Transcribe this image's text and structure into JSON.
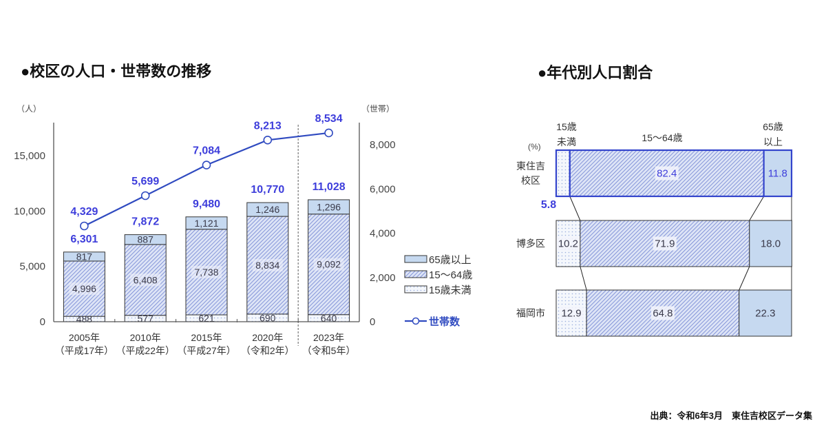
{
  "left_chart": {
    "title": "●校区の人口・世帯数の推移",
    "y_left_unit": "（人）",
    "y_right_unit": "（世帯）",
    "y_left_ticks": [
      "15,000",
      "10,000",
      "5,000",
      "0"
    ],
    "y_right_ticks": [
      "8,000",
      "6,000",
      "4,000",
      "2,000",
      "0"
    ],
    "categories": [
      {
        "year": "2005年",
        "era": "（平成17年）"
      },
      {
        "year": "2010年",
        "era": "（平成22年）"
      },
      {
        "year": "2015年",
        "era": "（平成27年）"
      },
      {
        "year": "2020年",
        "era": "（令和2年）"
      },
      {
        "year": "2023年",
        "era": "（令和5年）"
      }
    ],
    "legend": {
      "age65_plus": "65歳以上",
      "age15_64": "15～64歳",
      "under15": "15歳未満",
      "households": "世帯数"
    }
  },
  "right_chart": {
    "title": "●年代別人口割合",
    "unit": "(%)",
    "col_headers": {
      "under15": [
        "15歳",
        "未満"
      ],
      "age15_64": "15～64歳",
      "age65_plus": [
        "65歳",
        "以上"
      ]
    },
    "rows": [
      {
        "label_lines": [
          "東住吉",
          "校区"
        ]
      },
      {
        "label_lines": [
          "博多区"
        ]
      },
      {
        "label_lines": [
          "福岡市"
        ]
      }
    ]
  },
  "source": "出典：令和6年3月　東住吉校区データ集",
  "colors": {
    "label_blue": "#3d3ddb",
    "line_blue": "#2f4ac0",
    "highlight_border": "#3344cc",
    "age65_fill": "#c6d9f0",
    "hatch_bg": "#dde4f6",
    "hatch_line": "#6f82d2",
    "dots_bg": "#f4f7fc",
    "dots_fg": "#9aaedc",
    "axis": "#555555"
  },
  "chart_data": [
    {
      "type": "bar",
      "stacked": true,
      "title": "●校区の人口・世帯数の推移",
      "categories": [
        "2005年（平成17年）",
        "2010年（平成22年）",
        "2015年（平成27年）",
        "2020年（令和2年）",
        "2023年（令和5年）"
      ],
      "series": [
        {
          "name": "15歳未満",
          "values": [
            488,
            577,
            621,
            690,
            640
          ]
        },
        {
          "name": "15～64歳",
          "values": [
            4996,
            6408,
            7738,
            8834,
            9092
          ]
        },
        {
          "name": "65歳以上",
          "values": [
            817,
            887,
            1121,
            1246,
            1296
          ]
        }
      ],
      "totals": [
        6301,
        7872,
        9480,
        10770,
        11028
      ],
      "line_series": {
        "name": "世帯数",
        "type": "line",
        "axis": "right",
        "values": [
          4329,
          5699,
          7084,
          8213,
          8534
        ]
      },
      "xlabel": "",
      "ylabel": "（人）",
      "y2label": "（世帯）",
      "ylim": [
        0,
        18000
      ],
      "y2lim": [
        0,
        9000
      ],
      "yticks": [
        15000,
        10000,
        5000,
        0
      ],
      "y2ticks": [
        8000,
        6000,
        4000,
        2000,
        0
      ],
      "grid": false,
      "legend_position": "right",
      "separator_before_index": 4
    },
    {
      "type": "bar",
      "orientation": "horizontal",
      "stacked": true,
      "percent": true,
      "title": "●年代別人口割合",
      "categories": [
        "東住吉校区",
        "博多区",
        "福岡市"
      ],
      "series": [
        {
          "name": "15歳未満",
          "values": [
            5.8,
            10.2,
            12.9
          ]
        },
        {
          "name": "15～64歳",
          "values": [
            82.4,
            71.9,
            64.8
          ]
        },
        {
          "name": "65歳以上",
          "values": [
            11.8,
            18.0,
            22.3
          ]
        }
      ],
      "xlabel": "(%)",
      "xlim": [
        0,
        100
      ],
      "highlight_category": "東住吉校区"
    }
  ]
}
